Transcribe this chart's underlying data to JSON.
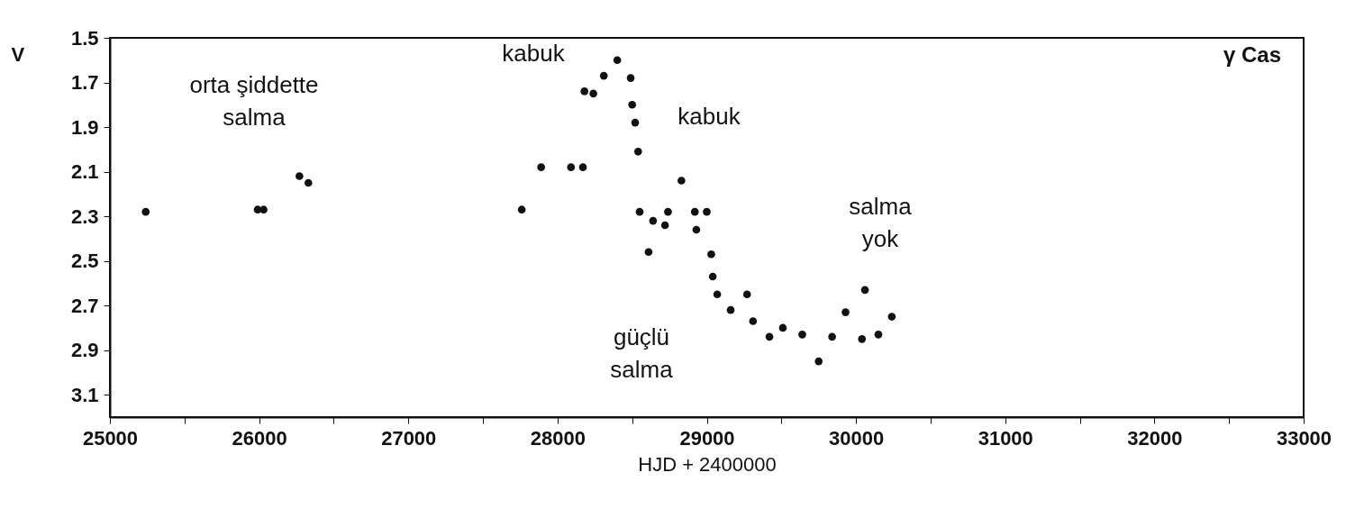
{
  "chart_data": {
    "type": "scatter",
    "title": "γ Cas",
    "xlabel": "HJD + 2400000",
    "ylabel": "V",
    "x": [
      25240,
      25990,
      26030,
      26270,
      26330,
      27760,
      27890,
      28090,
      28170,
      28180,
      28240,
      28310,
      28400,
      28490,
      28500,
      28520,
      28540,
      28550,
      28640,
      28610,
      28740,
      28720,
      28830,
      28920,
      29000,
      28930,
      29030,
      29040,
      29070,
      29270,
      29160,
      29310,
      29420,
      29510,
      29640,
      29750,
      29840,
      29930,
      30040,
      30060,
      30150,
      30240
    ],
    "series": [
      {
        "color": "#111111",
        "values": [
          2.28,
          2.27,
          2.27,
          2.12,
          2.15,
          2.27,
          2.08,
          2.08,
          2.08,
          1.74,
          1.75,
          1.67,
          1.6,
          1.68,
          1.8,
          1.88,
          2.01,
          2.28,
          2.32,
          2.46,
          2.28,
          2.34,
          2.14,
          2.28,
          2.28,
          2.36,
          2.47,
          2.57,
          2.65,
          2.65,
          2.72,
          2.77,
          2.84,
          2.8,
          2.83,
          2.95,
          2.84,
          2.73,
          2.85,
          2.63,
          2.83,
          2.75
        ]
      }
    ],
    "marker": "circle",
    "xlim": [
      25000,
      33000
    ],
    "xticks": [
      25000,
      {
        "value": 25500,
        "label": null
      },
      26000,
      {
        "value": 26500,
        "label": null
      },
      27000,
      {
        "value": 27500,
        "label": null
      },
      28000,
      {
        "value": 28500,
        "label": null
      },
      29000,
      {
        "value": 29500,
        "label": null
      },
      30000,
      {
        "value": 30500,
        "label": null
      },
      31000,
      {
        "value": 31500,
        "label": null
      },
      32000,
      {
        "value": 32500,
        "label": null
      },
      33000
    ],
    "ylim": [
      3.2,
      1.5
    ],
    "yticks": [
      1.5,
      1.7,
      1.9,
      2.1,
      2.3,
      2.5,
      2.7,
      2.9,
      3.1
    ],
    "annotations": [
      "orta şiddette\nsalma",
      "kabuk",
      "kabuk",
      "güçlü\nsalma",
      "salma\nyok"
    ]
  }
}
